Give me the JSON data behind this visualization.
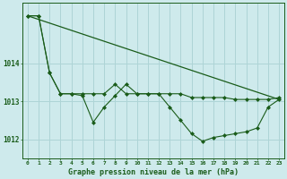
{
  "title": "Graphe pression niveau de la mer (hPa)",
  "background_color": "#ceeaec",
  "grid_color": "#aed4d6",
  "line_color": "#1a5c1a",
  "x_ticks": [
    0,
    1,
    2,
    3,
    4,
    5,
    6,
    7,
    8,
    9,
    10,
    11,
    12,
    13,
    14,
    15,
    16,
    17,
    18,
    19,
    20,
    21,
    22,
    23
  ],
  "ylim": [
    1011.5,
    1015.6
  ],
  "yticks": [
    1012,
    1013,
    1014
  ],
  "series": {
    "line1_nomarker": {
      "x": [
        0,
        23
      ],
      "y": [
        1015.25,
        1013.05
      ]
    },
    "line2_markers": {
      "x": [
        0,
        1,
        2,
        3,
        4,
        5,
        6,
        7,
        8,
        9,
        10,
        11,
        12,
        13,
        14,
        15,
        16,
        17,
        18,
        19,
        20,
        21,
        22,
        23
      ],
      "y": [
        1015.25,
        1015.25,
        1013.75,
        1013.2,
        1013.2,
        1013.15,
        1012.45,
        1012.85,
        1013.15,
        1013.45,
        1013.2,
        1013.2,
        1013.2,
        1012.85,
        1012.5,
        1012.15,
        1011.95,
        1012.05,
        1012.1,
        1012.15,
        1012.2,
        1012.3,
        1012.85,
        1013.05
      ]
    },
    "line3_markers": {
      "x": [
        0,
        1,
        2,
        3,
        4,
        5,
        6,
        7,
        8,
        9,
        10,
        11,
        12,
        13,
        14,
        15,
        16,
        17,
        18,
        19,
        20,
        21,
        22,
        23
      ],
      "y": [
        1015.25,
        1015.25,
        1013.75,
        1013.2,
        1013.2,
        1013.2,
        1013.2,
        1013.2,
        1013.45,
        1013.2,
        1013.2,
        1013.2,
        1013.2,
        1013.2,
        1013.2,
        1013.1,
        1013.1,
        1013.1,
        1013.1,
        1013.05,
        1013.05,
        1013.05,
        1013.05,
        1013.1
      ]
    }
  }
}
